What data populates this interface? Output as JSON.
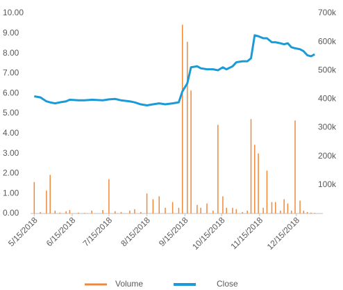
{
  "chart_data": {
    "type": "line-bar",
    "x": [
      "5/15/2018",
      "5/20/2018",
      "5/25/2018",
      "5/28/2018",
      "6/1/2018",
      "6/5/2018",
      "6/10/2018",
      "6/13/2018",
      "6/20/2018",
      "6/25/2018",
      "7/1/2018",
      "7/10/2018",
      "7/15/2018",
      "7/20/2018",
      "7/25/2018",
      "8/1/2018",
      "8/5/2018",
      "8/10/2018",
      "8/15/2018",
      "8/20/2018",
      "8/25/2018",
      "8/30/2018",
      "9/5/2018",
      "9/10/2018",
      "9/13/2018",
      "9/17/2018",
      "9/20/2018",
      "9/25/2018",
      "9/28/2018",
      "10/3/2018",
      "10/8/2018",
      "10/12/2018",
      "10/16/2018",
      "10/19/2018",
      "10/24/2018",
      "10/27/2018",
      "11/1/2018",
      "11/5/2018",
      "11/8/2018",
      "11/11/2018",
      "11/14/2018",
      "11/18/2018",
      "11/21/2018",
      "11/25/2018",
      "11/28/2018",
      "12/2/2018",
      "12/5/2018",
      "12/8/2018",
      "12/11/2018",
      "12/14/2018",
      "12/18/2018",
      "12/21/2018",
      "12/24/2018",
      "12/27/2018",
      "12/30/2018"
    ],
    "series": [
      {
        "name": "Volume",
        "color": "#f0883a",
        "axis": "y2",
        "kind": "bar",
        "values": [
          110000,
          5000,
          80000,
          135000,
          10000,
          3000,
          8000,
          12000,
          3000,
          2000,
          10000,
          12000,
          120000,
          8000,
          5000,
          10000,
          15000,
          5000,
          70000,
          50000,
          60000,
          20000,
          40000,
          20000,
          660000,
          600000,
          430000,
          30000,
          20000,
          35000,
          10000,
          310000,
          60000,
          20000,
          20000,
          15000,
          5000,
          10000,
          330000,
          240000,
          210000,
          20000,
          150000,
          40000,
          40000,
          10000,
          50000,
          35000,
          10000,
          325000,
          45000,
          10000,
          5000,
          3000,
          2000
        ]
      },
      {
        "name": "Close",
        "color": "#1a9bd7",
        "axis": "y",
        "kind": "line",
        "values": [
          5.85,
          5.8,
          5.6,
          5.55,
          5.5,
          5.55,
          5.6,
          5.68,
          5.65,
          5.65,
          5.68,
          5.65,
          5.7,
          5.72,
          5.65,
          5.6,
          5.55,
          5.45,
          5.4,
          5.45,
          5.5,
          5.45,
          5.5,
          5.55,
          6.1,
          6.5,
          7.3,
          7.35,
          7.25,
          7.2,
          7.2,
          7.15,
          7.3,
          7.2,
          7.35,
          7.55,
          7.6,
          7.6,
          7.75,
          8.9,
          8.85,
          8.75,
          8.75,
          8.55,
          8.55,
          8.5,
          8.45,
          8.5,
          8.3,
          8.25,
          8.2,
          8.1,
          7.9,
          7.85,
          7.95
        ]
      }
    ],
    "ylim": [
      0,
      10
    ],
    "yticks": [
      {
        "value": 0,
        "label": "0.00"
      },
      {
        "value": 1,
        "label": "1.00"
      },
      {
        "value": 2,
        "label": "2.00"
      },
      {
        "value": 3,
        "label": "3.00"
      },
      {
        "value": 4,
        "label": "4.00"
      },
      {
        "value": 5,
        "label": "5.00"
      },
      {
        "value": 6,
        "label": "6.00"
      },
      {
        "value": 7,
        "label": "7.00"
      },
      {
        "value": 8,
        "label": "8.00"
      },
      {
        "value": 9,
        "label": "9.00"
      },
      {
        "value": 10,
        "label": "10.00"
      }
    ],
    "y2lim": [
      0,
      700000
    ],
    "y2ticks": [
      {
        "value": 100000,
        "label": "100k"
      },
      {
        "value": 200000,
        "label": "200k"
      },
      {
        "value": 300000,
        "label": "300k"
      },
      {
        "value": 400000,
        "label": "400k"
      },
      {
        "value": 500000,
        "label": "500k"
      },
      {
        "value": 600000,
        "label": "600k"
      },
      {
        "value": 700000,
        "label": "700k"
      }
    ],
    "xlim": [
      "5/12/2018",
      "12/31/2018"
    ],
    "xticks": [
      "5/15/2018",
      "6/15/2018",
      "7/15/2018",
      "8/15/2018",
      "9/15/2018",
      "10/15/2018",
      "11/15/2018",
      "12/15/2018"
    ],
    "legend": "bottom"
  }
}
